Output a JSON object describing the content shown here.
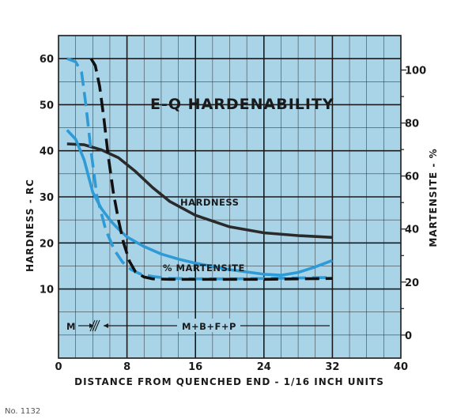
{
  "chart_data": {
    "type": "line",
    "title": "E-Q HARDENABILITY",
    "xlabel": "DISTANCE FROM QUENCHED END - 1/16 INCH UNITS",
    "ylabel_left": "HARDNESS - RC",
    "ylabel_right": "MARTENSITE - %",
    "xlim": [
      0,
      40
    ],
    "ylim_left": [
      -5,
      65
    ],
    "ylim_right": [
      -8.7,
      113
    ],
    "x_ticks": [
      "0",
      "8",
      "16",
      "24",
      "32",
      "40"
    ],
    "y_ticks_left": [
      "10",
      "20",
      "30",
      "40",
      "50",
      "60"
    ],
    "y_ticks_right": [
      "0",
      "20",
      "40",
      "60",
      "80",
      "100"
    ],
    "grid": true,
    "background_color": "#a9d4e8",
    "series": [
      {
        "name": "HARDNESS",
        "style": "solid",
        "color": "#2a2a2a",
        "axis": "left",
        "x": [
          1,
          3,
          5,
          7,
          9,
          11,
          13,
          16,
          20,
          24,
          28,
          32
        ],
        "y": [
          41.5,
          41.3,
          40.2,
          38.5,
          35.5,
          32.0,
          29.0,
          26.0,
          23.5,
          22.2,
          21.6,
          21.2
        ]
      },
      {
        "name": "% MARTENSITE",
        "style": "solid",
        "color": "#2e9ad6",
        "axis": "left",
        "x": [
          1,
          2,
          3,
          4,
          5,
          6,
          7,
          8,
          10,
          12,
          14,
          16,
          20,
          24,
          26,
          28,
          30,
          32
        ],
        "y": [
          44.5,
          42.5,
          38.0,
          31.0,
          27.5,
          25.0,
          23.0,
          21.3,
          19.2,
          17.6,
          16.5,
          15.6,
          14.2,
          13.2,
          13.0,
          13.6,
          14.8,
          16.2
        ]
      },
      {
        "style": "dashed",
        "color": "#2e9ad6",
        "axis": "left",
        "x": [
          1,
          2,
          2.7,
          3.2,
          3.8,
          4.5,
          5.5,
          6.5,
          7.5,
          8.5,
          9.5,
          11,
          13,
          16,
          20,
          24,
          28,
          32
        ],
        "y": [
          60,
          59.3,
          57,
          50,
          40,
          30,
          23,
          18.5,
          15.8,
          14.2,
          13.3,
          12.7,
          12.3,
          12.2,
          12.2,
          12.3,
          12.4,
          12.5
        ]
      },
      {
        "style": "dashed",
        "color": "#111111",
        "axis": "left",
        "x": [
          3.8,
          4.3,
          4.8,
          5.3,
          5.8,
          6.4,
          7,
          7.6,
          8.3,
          9,
          10,
          11,
          13,
          16,
          20,
          24,
          28,
          32
        ],
        "y": [
          60,
          58.5,
          54,
          47,
          39,
          31,
          25,
          20,
          16,
          13.7,
          12.6,
          12.2,
          12.1,
          12.1,
          12.1,
          12.1,
          12.2,
          12.3
        ]
      }
    ],
    "annotations": [
      "M",
      "M+B+F+P"
    ]
  },
  "plate_number": "No. 1132"
}
